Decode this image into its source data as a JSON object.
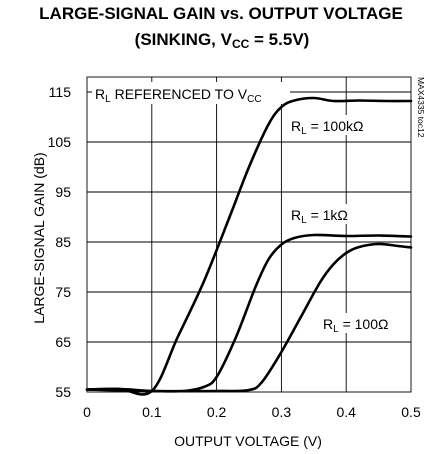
{
  "chart_data": {
    "type": "line",
    "title": {
      "line1": "LARGE-SIGNAL GAIN vs. OUTPUT VOLTAGE",
      "line2_pre": "(SINKING, V",
      "line2_sub": "CC",
      "line2_post": " = 5.5V)"
    },
    "figure_id": "MAX4335 toc12",
    "xlabel": "OUTPUT VOLTAGE (V)",
    "ylabel": "LARGE-SIGNAL GAIN (dB)",
    "xlim": [
      0,
      0.5
    ],
    "ylim": [
      55,
      118
    ],
    "x_ticks": [
      "0",
      "0.1",
      "0.2",
      "0.3",
      "0.4",
      "0.5"
    ],
    "y_ticks": [
      "55",
      "65",
      "75",
      "85",
      "95",
      "105",
      "115"
    ],
    "grid": true,
    "annotation": {
      "pre": "R",
      "sub": "L",
      "mid": " REFERENCED TO V",
      "sub2": "CC"
    },
    "series": [
      {
        "name": "R_L = 100kΩ",
        "label": {
          "pre": "R",
          "sub": "L",
          "post": " = 100kΩ"
        },
        "x": [
          0,
          0.05,
          0.1,
          0.14,
          0.18,
          0.22,
          0.25,
          0.28,
          0.3,
          0.32,
          0.35,
          0.38,
          0.42,
          0.46,
          0.5
        ],
        "y": [
          55.5,
          55.6,
          55.2,
          66,
          77,
          90,
          100,
          108.5,
          112,
          113.3,
          113.8,
          113.2,
          113.3,
          113.2,
          113.2
        ]
      },
      {
        "name": "R_L = 1kΩ",
        "label": {
          "pre": "R",
          "sub": "L",
          "post": " = 1kΩ"
        },
        "x": [
          0,
          0.05,
          0.1,
          0.15,
          0.18,
          0.2,
          0.23,
          0.26,
          0.28,
          0.3,
          0.32,
          0.35,
          0.4,
          0.45,
          0.5
        ],
        "y": [
          55.5,
          55.6,
          55.2,
          55.2,
          56,
          58,
          66,
          76,
          81.5,
          84.5,
          85.8,
          86.4,
          86.2,
          86.3,
          86.1
        ]
      },
      {
        "name": "R_L = 100Ω",
        "label": {
          "pre": "R",
          "sub": "L",
          "post": " = 100Ω"
        },
        "x": [
          0,
          0.1,
          0.2,
          0.25,
          0.27,
          0.3,
          0.33,
          0.36,
          0.38,
          0.4,
          0.42,
          0.45,
          0.48,
          0.5
        ],
        "y": [
          55.5,
          55.2,
          55.2,
          55.4,
          57,
          63,
          70,
          77,
          80.5,
          82.8,
          84,
          84.6,
          84.2,
          83.9
        ]
      }
    ]
  }
}
